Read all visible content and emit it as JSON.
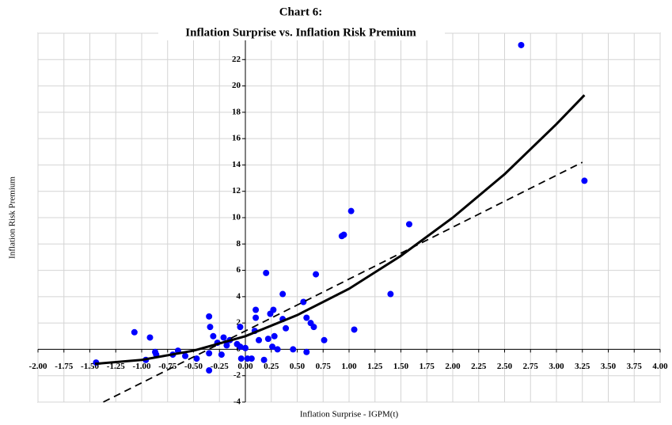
{
  "chart_data": {
    "type": "scatter",
    "title": "Chart 6:",
    "subtitle": "Inflation Surprise vs. Inflation Risk Premium",
    "x_label": "Inflation Surprise - IGPM(t)",
    "y_label": "Inflation Risk Premium",
    "xlim": [
      -2,
      4
    ],
    "ylim": [
      -4,
      24
    ],
    "grid": true,
    "xticks": [
      {
        "value": -2,
        "label": "-2.00"
      },
      -1.75,
      {
        "value": -1.5,
        "label": "-1.50"
      },
      -1.25,
      {
        "value": -1,
        "label": "-1.00"
      },
      -0.75,
      {
        "value": -0.5,
        "label": "-0.50"
      },
      -0.25,
      {
        "value": 0,
        "label": "0.00"
      },
      0.25,
      {
        "value": 0.5,
        "label": "0.50"
      },
      0.75,
      {
        "value": 1,
        "label": "1.00"
      },
      1.25,
      {
        "value": 1.5,
        "label": "1.50"
      },
      1.75,
      {
        "value": 2,
        "label": "2.00"
      },
      2.25,
      {
        "value": 2.5,
        "label": "2.50"
      },
      2.75,
      {
        "value": 3,
        "label": "3.00"
      },
      3.25,
      {
        "value": 3.5,
        "label": "3.50"
      },
      3.75,
      {
        "value": 4,
        "label": "4.00"
      }
    ],
    "yticks": [
      -4,
      -2,
      0,
      2,
      4,
      6,
      8,
      10,
      12,
      14,
      16,
      18,
      20,
      22,
      24
    ],
    "series": [
      {
        "type": "scatter",
        "color": "#0000ff",
        "x": [
          -1.44,
          -1.07,
          -0.96,
          -0.92,
          -0.87,
          -0.86,
          -0.7,
          -0.65,
          -0.58,
          -0.47,
          -0.35,
          -0.34,
          -0.35,
          -0.35,
          -0.31,
          -0.27,
          -0.23,
          -0.21,
          -0.18,
          -0.15,
          -0.08,
          -0.05,
          -0.05,
          -0.04,
          0,
          0.02,
          0.06,
          0.1,
          0.1,
          0.09,
          0.13,
          0.18,
          0.2,
          0.22,
          0.24,
          0.27,
          0.26,
          0.28,
          0.31,
          0.36,
          0.36,
          0.39,
          0.46,
          0.56,
          0.59,
          0.59,
          0.63,
          0.66,
          0.68,
          0.76,
          0.93,
          0.95,
          1.02,
          1.05,
          1.4,
          1.58,
          2.66,
          3.27
        ],
        "values": [
          -1,
          1.3,
          -0.8,
          0.9,
          -0.2,
          -0.4,
          -0.4,
          -0.1,
          -0.5,
          -0.7,
          2.5,
          1.7,
          -0.3,
          -1.6,
          1,
          0.5,
          -0.4,
          0.9,
          0.3,
          0.7,
          0.4,
          1.7,
          0.2,
          -0.7,
          0.1,
          -0.7,
          -0.7,
          3,
          2.4,
          1.4,
          0.7,
          -0.8,
          5.8,
          0.8,
          2.7,
          3,
          0.2,
          1,
          0,
          4.2,
          2.3,
          1.6,
          0,
          3.6,
          2.4,
          -0.2,
          2,
          1.7,
          5.7,
          0.7,
          8.6,
          8.7,
          10.5,
          1.5,
          4.2,
          9.5,
          23.1,
          12.8
        ]
      },
      {
        "type": "line",
        "color": "#000000",
        "style": "solid",
        "x": [
          -1.45,
          -1,
          -0.5,
          0,
          0.5,
          1,
          1.5,
          2,
          2.5,
          3,
          3.27
        ],
        "values": [
          -1.1,
          -0.8,
          -0.1,
          1,
          2.6,
          4.6,
          7.1,
          10,
          13.3,
          17.1,
          19.3
        ]
      },
      {
        "type": "line",
        "color": "#000000",
        "style": "dashed",
        "x": [
          -1.37,
          3.25
        ],
        "values": [
          -4,
          14.2
        ]
      }
    ]
  }
}
